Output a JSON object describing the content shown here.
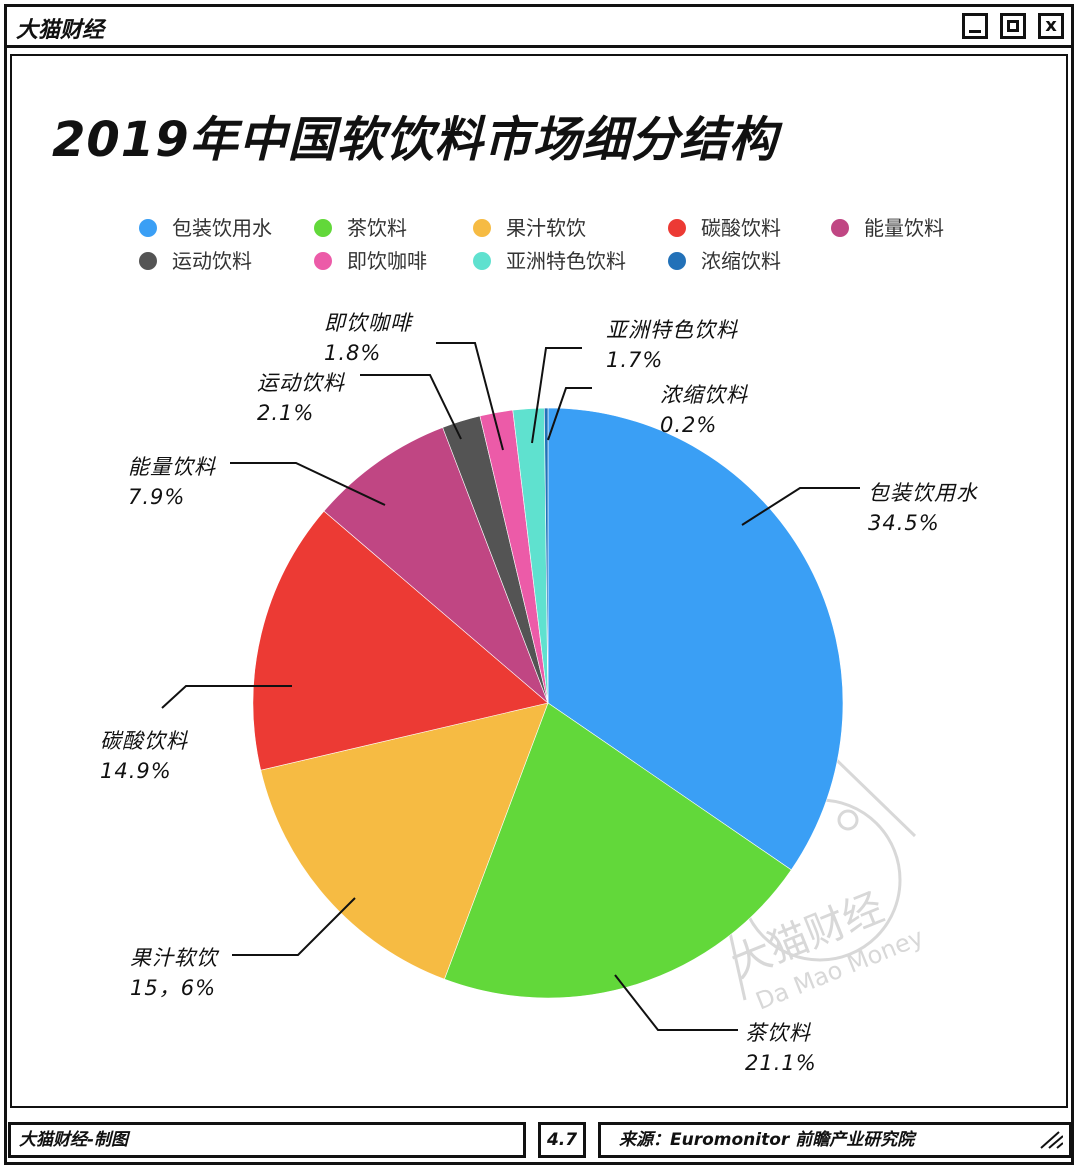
{
  "app": {
    "title": "大猫财经",
    "close_label": "x"
  },
  "chart_data": {
    "type": "pie",
    "title": "2019年中国软饮料市场细分结构",
    "legend_position": "top",
    "slices": [
      {
        "name": "包装饮用水",
        "value": 34.5,
        "label": "34.5%",
        "color": "#3a9ff5"
      },
      {
        "name": "茶饮料",
        "value": 21.1,
        "label": "21.1%",
        "color": "#62d83a"
      },
      {
        "name": "果汁软饮",
        "value": 15.6,
        "label": "15，6%",
        "color": "#f6bb43"
      },
      {
        "name": "碳酸饮料",
        "value": 14.9,
        "label": "14.9%",
        "color": "#ec3a34"
      },
      {
        "name": "能量饮料",
        "value": 7.9,
        "label": "7.9%",
        "color": "#c04683"
      },
      {
        "name": "运动饮料",
        "value": 2.1,
        "label": "2.1%",
        "color": "#545454"
      },
      {
        "name": "即饮咖啡",
        "value": 1.8,
        "label": "1.8%",
        "color": "#ec5ba8"
      },
      {
        "name": "亚洲特色饮料",
        "value": 1.7,
        "label": "1.7%",
        "color": "#5fe1cf"
      },
      {
        "name": "浓缩饮料",
        "value": 0.2,
        "label": "0.2%",
        "color": "#2271b8"
      }
    ]
  },
  "watermark": {
    "text": "大猫财经",
    "sub": "Da Mao Money"
  },
  "footer": {
    "left": "大猫财经-制图",
    "mid": "4.7",
    "right": "来源：Euromonitor 前瞻产业研究院"
  }
}
